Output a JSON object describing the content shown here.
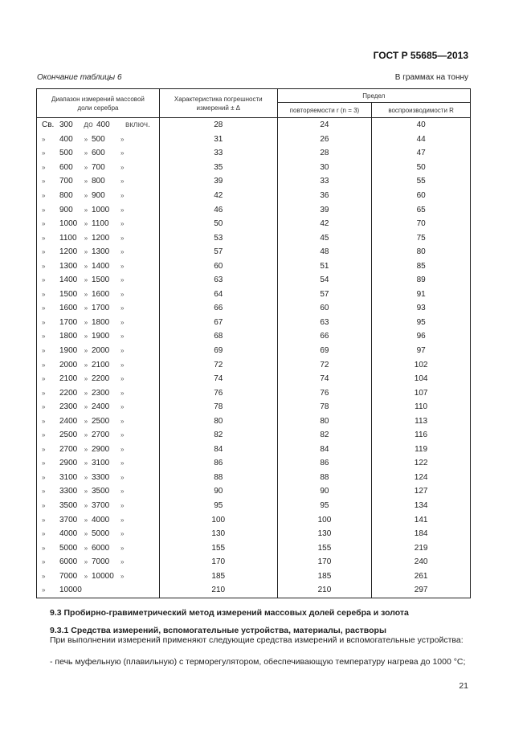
{
  "header": {
    "standard": "ГОСТ Р 55685—2013",
    "caption": "Окончание таблицы 6",
    "units": "В граммах на тонну"
  },
  "table": {
    "headers": {
      "range": "Диапазон измерений массовой доли серебра",
      "error": "Характеристика погрешности измерений ± Δ",
      "limit": "Предел",
      "repeat": "повторяемости r (n = 3)",
      "reprod": "воспроизводимости R"
    },
    "rows": [
      {
        "p": "Св.",
        "f": "300",
        "m": "до",
        "t": "400",
        "s": "включ.",
        "d": "28",
        "r": "24",
        "R": "40"
      },
      {
        "p": "»",
        "f": "400",
        "m": "»",
        "t": "500",
        "s": "»",
        "d": "31",
        "r": "26",
        "R": "44"
      },
      {
        "p": "»",
        "f": "500",
        "m": "»",
        "t": "600",
        "s": "»",
        "d": "33",
        "r": "28",
        "R": "47"
      },
      {
        "p": "»",
        "f": "600",
        "m": "»",
        "t": "700",
        "s": "»",
        "d": "35",
        "r": "30",
        "R": "50"
      },
      {
        "p": "»",
        "f": "700",
        "m": "»",
        "t": "800",
        "s": "»",
        "d": "39",
        "r": "33",
        "R": "55"
      },
      {
        "p": "»",
        "f": "800",
        "m": "»",
        "t": "900",
        "s": "»",
        "d": "42",
        "r": "36",
        "R": "60"
      },
      {
        "p": "»",
        "f": "900",
        "m": "»",
        "t": "1000",
        "s": "»",
        "d": "46",
        "r": "39",
        "R": "65"
      },
      {
        "p": "»",
        "f": "1000",
        "m": "»",
        "t": "1100",
        "s": "»",
        "d": "50",
        "r": "42",
        "R": "70"
      },
      {
        "p": "»",
        "f": "1100",
        "m": "»",
        "t": "1200",
        "s": "»",
        "d": "53",
        "r": "45",
        "R": "75"
      },
      {
        "p": "»",
        "f": "1200",
        "m": "»",
        "t": "1300",
        "s": "»",
        "d": "57",
        "r": "48",
        "R": "80"
      },
      {
        "p": "»",
        "f": "1300",
        "m": "»",
        "t": "1400",
        "s": "»",
        "d": "60",
        "r": "51",
        "R": "85"
      },
      {
        "p": "»",
        "f": "1400",
        "m": "»",
        "t": "1500",
        "s": "»",
        "d": "63",
        "r": "54",
        "R": "89"
      },
      {
        "p": "»",
        "f": "1500",
        "m": "»",
        "t": "1600",
        "s": "»",
        "d": "64",
        "r": "57",
        "R": "91"
      },
      {
        "p": "»",
        "f": "1600",
        "m": "»",
        "t": "1700",
        "s": "»",
        "d": "66",
        "r": "60",
        "R": "93"
      },
      {
        "p": "»",
        "f": "1700",
        "m": "»",
        "t": "1800",
        "s": "»",
        "d": "67",
        "r": "63",
        "R": "95"
      },
      {
        "p": "»",
        "f": "1800",
        "m": "»",
        "t": "1900",
        "s": "»",
        "d": "68",
        "r": "66",
        "R": "96"
      },
      {
        "p": "»",
        "f": "1900",
        "m": "»",
        "t": "2000",
        "s": "»",
        "d": "69",
        "r": "69",
        "R": "97"
      },
      {
        "p": "»",
        "f": "2000",
        "m": "»",
        "t": "2100",
        "s": "»",
        "d": "72",
        "r": "72",
        "R": "102"
      },
      {
        "p": "»",
        "f": "2100",
        "m": "»",
        "t": "2200",
        "s": "»",
        "d": "74",
        "r": "74",
        "R": "104"
      },
      {
        "p": "»",
        "f": "2200",
        "m": "»",
        "t": "2300",
        "s": "»",
        "d": "76",
        "r": "76",
        "R": "107"
      },
      {
        "p": "»",
        "f": "2300",
        "m": "»",
        "t": "2400",
        "s": "»",
        "d": "78",
        "r": "78",
        "R": "110"
      },
      {
        "p": "»",
        "f": "2400",
        "m": "»",
        "t": "2500",
        "s": "»",
        "d": "80",
        "r": "80",
        "R": "113"
      },
      {
        "p": "»",
        "f": "2500",
        "m": "»",
        "t": "2700",
        "s": "»",
        "d": "82",
        "r": "82",
        "R": "116"
      },
      {
        "p": "»",
        "f": "2700",
        "m": "»",
        "t": "2900",
        "s": "»",
        "d": "84",
        "r": "84",
        "R": "119"
      },
      {
        "p": "»",
        "f": "2900",
        "m": "»",
        "t": "3100",
        "s": "»",
        "d": "86",
        "r": "86",
        "R": "122"
      },
      {
        "p": "»",
        "f": "3100",
        "m": "»",
        "t": "3300",
        "s": "»",
        "d": "88",
        "r": "88",
        "R": "124"
      },
      {
        "p": "»",
        "f": "3300",
        "m": "»",
        "t": "3500",
        "s": "»",
        "d": "90",
        "r": "90",
        "R": "127"
      },
      {
        "p": "»",
        "f": "3500",
        "m": "»",
        "t": "3700",
        "s": "»",
        "d": "95",
        "r": "95",
        "R": "134"
      },
      {
        "p": "»",
        "f": "3700",
        "m": "»",
        "t": "4000",
        "s": "»",
        "d": "100",
        "r": "100",
        "R": "141"
      },
      {
        "p": "»",
        "f": "4000",
        "m": "»",
        "t": "5000",
        "s": "»",
        "d": "130",
        "r": "130",
        "R": "184"
      },
      {
        "p": "»",
        "f": "5000",
        "m": "»",
        "t": "6000",
        "s": "»",
        "d": "155",
        "r": "155",
        "R": "219"
      },
      {
        "p": "»",
        "f": "6000",
        "m": "»",
        "t": "7000",
        "s": "»",
        "d": "170",
        "r": "170",
        "R": "240"
      },
      {
        "p": "»",
        "f": "7000",
        "m": "»",
        "t": "10000",
        "s": "»",
        "d": "185",
        "r": "185",
        "R": "261"
      },
      {
        "p": "»",
        "f": "10000",
        "m": "",
        "t": "",
        "s": "",
        "d": "210",
        "r": "210",
        "R": "297"
      }
    ]
  },
  "body": {
    "h93": "9.3 Пробирно-гравиметрический метод измерений массовых долей серебра и золота",
    "h931": "9.3.1 Средства измерений, вспомогательные устройства, материалы, растворы",
    "p1": "При выполнении измерений применяют следующие средства измерений и вспомогательные устройства:",
    "p2": "- печь муфельную (плавильную) с терморегулятором, обеспечивающую температуру нагрева до 1000 °С;"
  },
  "footer": {
    "page_number": "21"
  }
}
